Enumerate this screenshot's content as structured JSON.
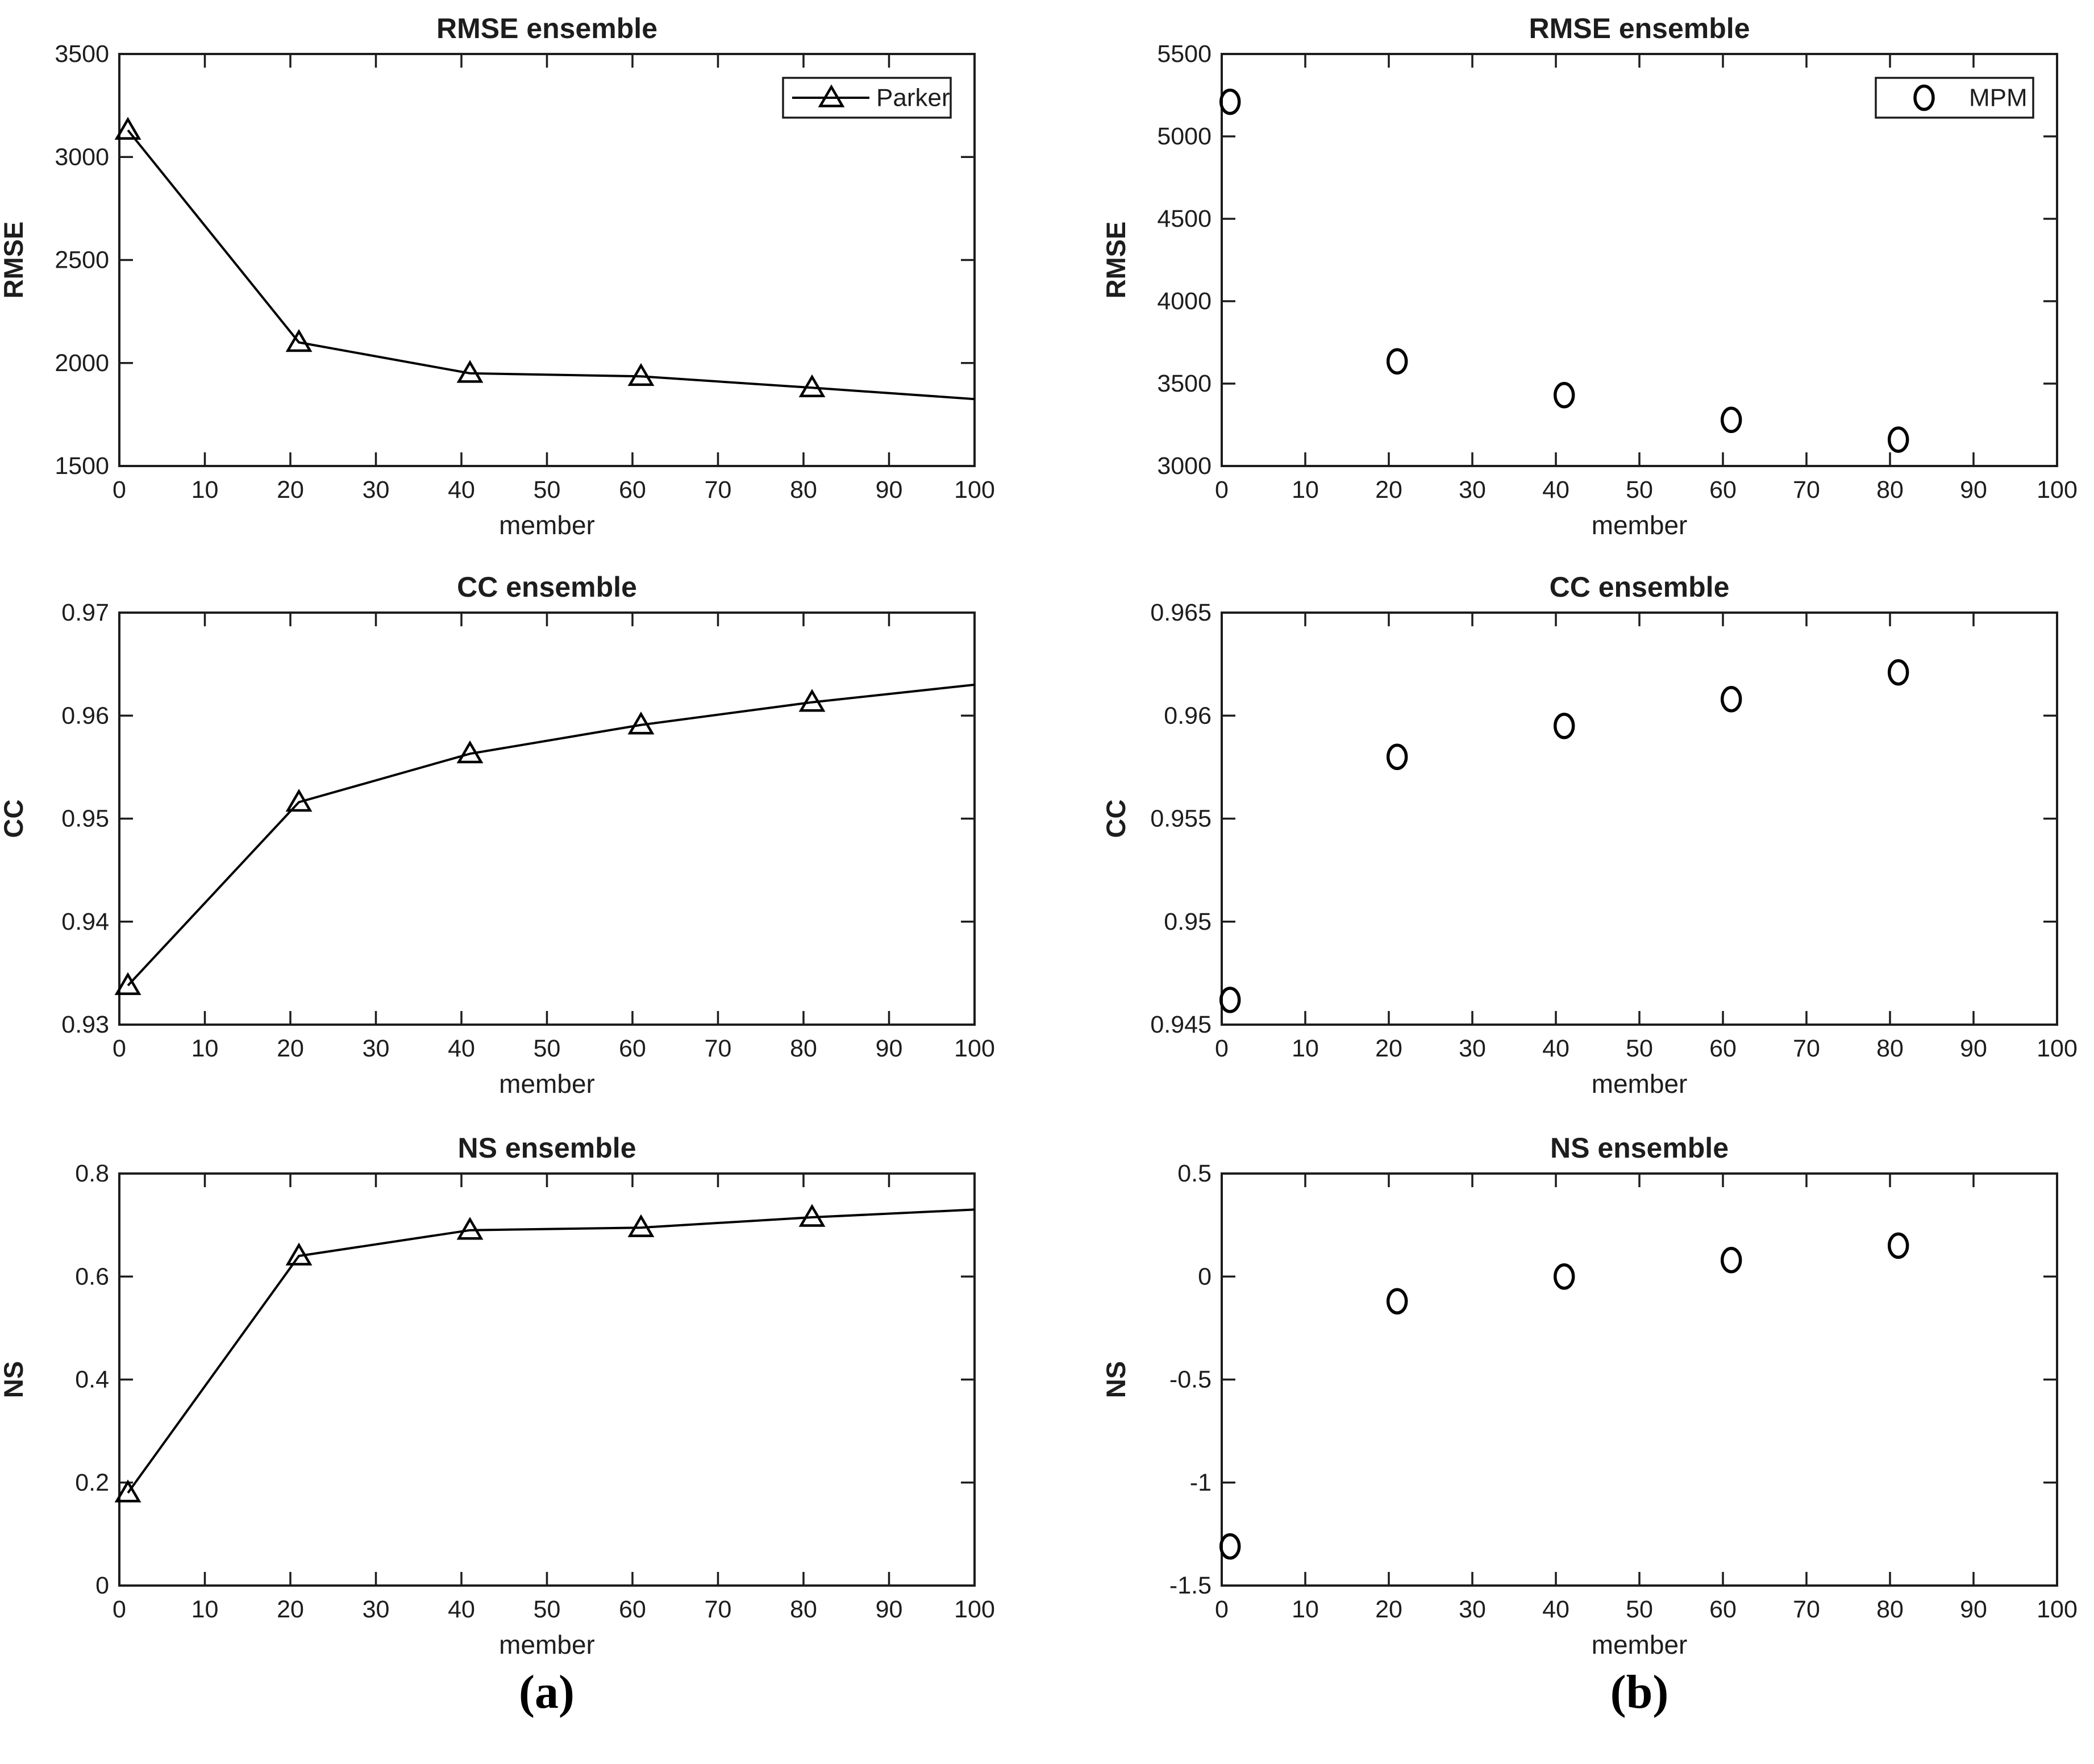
{
  "figure": {
    "captions": [
      {
        "id": "a",
        "text": "(a)"
      },
      {
        "id": "b",
        "text": "(b)"
      }
    ],
    "colors": {
      "background": "#ffffff",
      "axis": "#1d1d1d",
      "text": "#1d1d1d",
      "series": "#000000"
    }
  },
  "chart_data": [
    {
      "id": "rmse-parker",
      "panel": "a",
      "type": "line",
      "title": "RMSE ensemble",
      "xlabel": "member",
      "ylabel": "RMSE",
      "xlim": [
        0,
        100
      ],
      "xticks": [
        0,
        10,
        20,
        30,
        40,
        50,
        60,
        70,
        80,
        90,
        100
      ],
      "ylim": [
        1500,
        3500
      ],
      "yticks": [
        1500,
        2000,
        2500,
        3000,
        3500
      ],
      "grid": false,
      "legend": {
        "show": true,
        "position": "top-right",
        "label": "Parker"
      },
      "series": [
        {
          "name": "Parker",
          "marker": "triangle",
          "line": true,
          "x": [
            1,
            21,
            41,
            61,
            81
          ],
          "y": [
            3130,
            2100,
            1950,
            1935,
            1880
          ],
          "line_end": {
            "x": 100,
            "y": 1825
          }
        }
      ]
    },
    {
      "id": "rmse-mpm",
      "panel": "b",
      "type": "scatter",
      "title": "RMSE ensemble",
      "xlabel": "member",
      "ylabel": "RMSE",
      "xlim": [
        0,
        100
      ],
      "xticks": [
        0,
        10,
        20,
        30,
        40,
        50,
        60,
        70,
        80,
        90,
        100
      ],
      "ylim": [
        3000,
        5500
      ],
      "yticks": [
        3000,
        3500,
        4000,
        4500,
        5000,
        5500
      ],
      "grid": false,
      "legend": {
        "show": true,
        "position": "top-right",
        "label": "MPM"
      },
      "series": [
        {
          "name": "MPM",
          "marker": "circle",
          "line": false,
          "x": [
            1,
            21,
            41,
            61,
            81
          ],
          "y": [
            5210,
            3635,
            3430,
            3280,
            3160
          ]
        }
      ]
    },
    {
      "id": "cc-parker",
      "panel": "a",
      "type": "line",
      "title": "CC ensemble",
      "xlabel": "member",
      "ylabel": "CC",
      "xlim": [
        0,
        100
      ],
      "xticks": [
        0,
        10,
        20,
        30,
        40,
        50,
        60,
        70,
        80,
        90,
        100
      ],
      "ylim": [
        0.93,
        0.97
      ],
      "yticks": [
        0.93,
        0.94,
        0.95,
        0.96,
        0.97
      ],
      "grid": false,
      "legend": {
        "show": false,
        "label": "Parker"
      },
      "series": [
        {
          "name": "Parker",
          "marker": "triangle",
          "line": true,
          "x": [
            1,
            21,
            41,
            61,
            81
          ],
          "y": [
            0.9338,
            0.9516,
            0.9563,
            0.9591,
            0.9613
          ],
          "line_end": {
            "x": 100,
            "y": 0.963
          }
        }
      ]
    },
    {
      "id": "cc-mpm",
      "panel": "b",
      "type": "scatter",
      "title": "CC ensemble",
      "xlabel": "member",
      "ylabel": "CC",
      "xlim": [
        0,
        100
      ],
      "xticks": [
        0,
        10,
        20,
        30,
        40,
        50,
        60,
        70,
        80,
        90,
        100
      ],
      "ylim": [
        0.945,
        0.965
      ],
      "yticks": [
        0.945,
        0.95,
        0.955,
        0.96,
        0.965
      ],
      "grid": false,
      "legend": {
        "show": false,
        "label": "MPM"
      },
      "series": [
        {
          "name": "MPM",
          "marker": "circle",
          "line": false,
          "x": [
            1,
            21,
            41,
            61,
            81
          ],
          "y": [
            0.9462,
            0.958,
            0.9595,
            0.9608,
            0.9621
          ]
        }
      ]
    },
    {
      "id": "ns-parker",
      "panel": "a",
      "type": "line",
      "title": "NS ensemble",
      "xlabel": "member",
      "ylabel": "NS",
      "xlim": [
        0,
        100
      ],
      "xticks": [
        0,
        10,
        20,
        30,
        40,
        50,
        60,
        70,
        80,
        90,
        100
      ],
      "ylim": [
        0,
        0.8
      ],
      "yticks": [
        0,
        0.2,
        0.4,
        0.6,
        0.8
      ],
      "grid": false,
      "legend": {
        "show": false,
        "label": "Parker"
      },
      "series": [
        {
          "name": "Parker",
          "marker": "triangle",
          "line": true,
          "x": [
            1,
            21,
            41,
            61,
            81
          ],
          "y": [
            0.18,
            0.64,
            0.69,
            0.695,
            0.715
          ],
          "line_end": {
            "x": 100,
            "y": 0.73
          }
        }
      ]
    },
    {
      "id": "ns-mpm",
      "panel": "b",
      "type": "scatter",
      "title": "NS ensemble",
      "xlabel": "member",
      "ylabel": "NS",
      "xlim": [
        0,
        100
      ],
      "xticks": [
        0,
        10,
        20,
        30,
        40,
        50,
        60,
        70,
        80,
        90,
        100
      ],
      "ylim": [
        -1.5,
        0.5
      ],
      "yticks": [
        -1.5,
        -1,
        -0.5,
        0,
        0.5
      ],
      "grid": false,
      "legend": {
        "show": false,
        "label": "MPM"
      },
      "series": [
        {
          "name": "MPM",
          "marker": "circle",
          "line": false,
          "x": [
            1,
            21,
            41,
            61,
            81
          ],
          "y": [
            -1.31,
            -0.12,
            0,
            0.08,
            0.15
          ]
        }
      ]
    }
  ]
}
